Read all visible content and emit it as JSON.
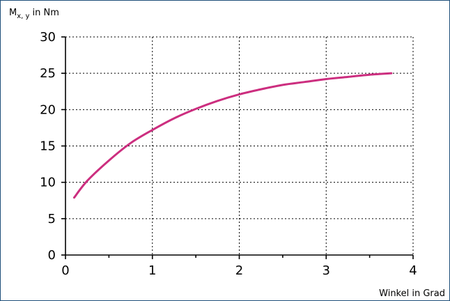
{
  "chart_data": {
    "type": "line",
    "ylabel_main": "M",
    "ylabel_sub": "x, y",
    "ylabel_unit": " in Nm",
    "xlabel": "Winkel in Grad",
    "xlim": [
      0,
      4
    ],
    "ylim": [
      0,
      30
    ],
    "xticks": [
      0,
      1,
      2,
      3,
      4
    ],
    "yticks": [
      0,
      5,
      10,
      15,
      20,
      25,
      30
    ],
    "grid": true,
    "color": "#cc2e7f",
    "series": [
      {
        "x": [
          0.1,
          0.25,
          0.5,
          0.75,
          1.0,
          1.25,
          1.5,
          1.75,
          2.0,
          2.25,
          2.5,
          2.75,
          3.0,
          3.25,
          3.5,
          3.75
        ],
        "y": [
          7.9,
          10.2,
          13.0,
          15.4,
          17.2,
          18.8,
          20.1,
          21.2,
          22.1,
          22.8,
          23.4,
          23.8,
          24.2,
          24.5,
          24.8,
          25.0
        ]
      }
    ]
  }
}
